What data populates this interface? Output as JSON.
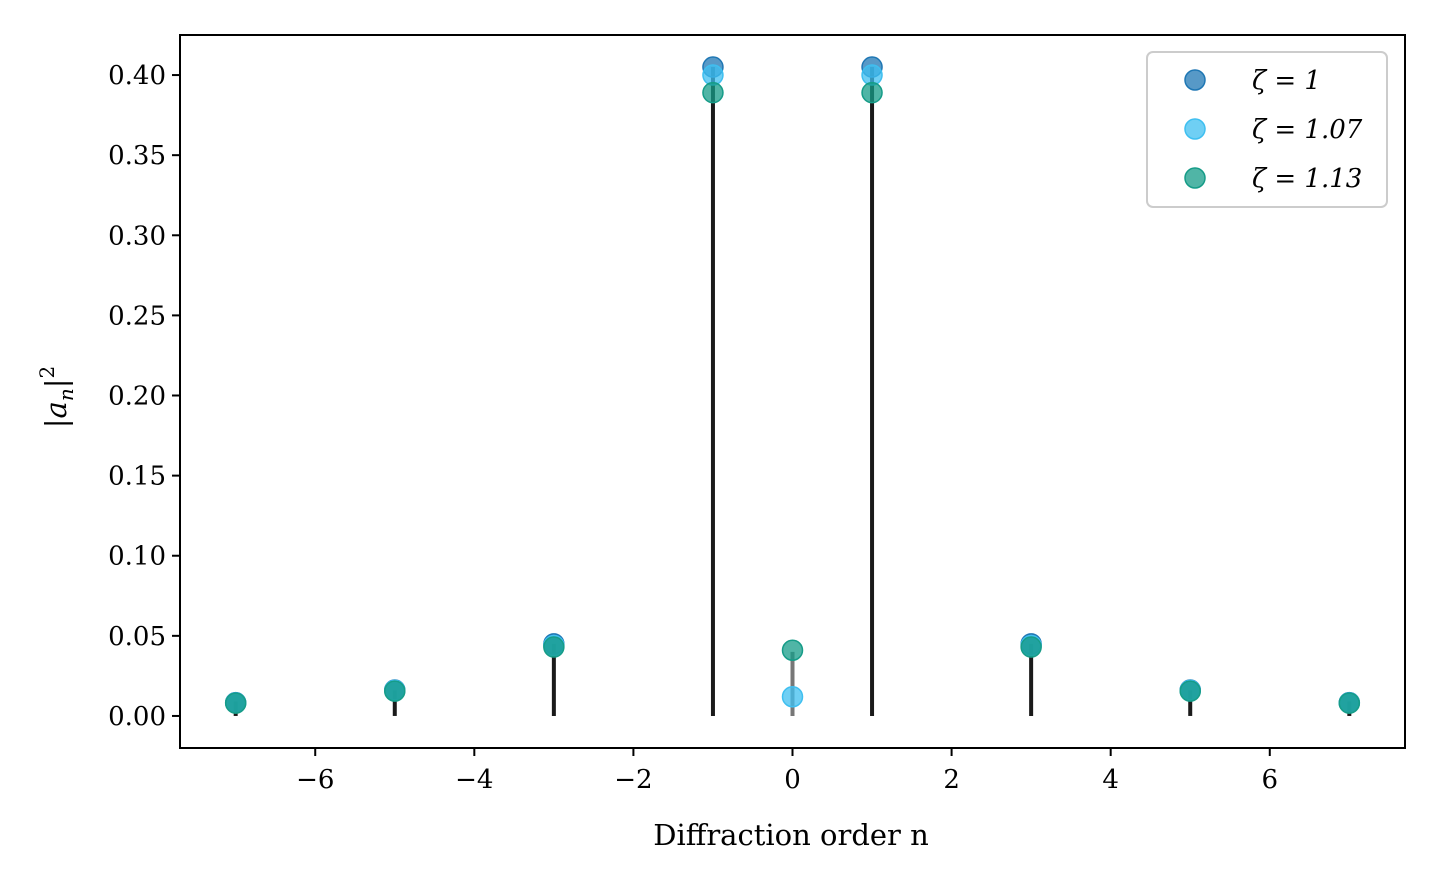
{
  "chart_data": {
    "type": "scatter",
    "title": "",
    "xlabel": "Diffraction order n",
    "ylabel": "|a_n|^2",
    "xlim": [
      -7.7,
      7.7
    ],
    "ylim": [
      -0.02,
      0.425
    ],
    "x_ticks": [
      -6,
      -4,
      -2,
      0,
      2,
      4,
      6
    ],
    "x_tick_labels": [
      "−6",
      "−4",
      "−2",
      "0",
      "2",
      "4",
      "6"
    ],
    "y_ticks": [
      0.0,
      0.05,
      0.1,
      0.15,
      0.2,
      0.25,
      0.3,
      0.35,
      0.4
    ],
    "y_tick_labels": [
      "0.00",
      "0.05",
      "0.10",
      "0.15",
      "0.20",
      "0.25",
      "0.30",
      "0.35",
      "0.40"
    ],
    "grid": false,
    "legend_position": "top-right",
    "stems": {
      "x": [
        -7,
        -5,
        -3,
        -1,
        0,
        1,
        3,
        5,
        7
      ],
      "y": [
        0.009,
        0.016,
        0.045,
        0.405,
        0.04,
        0.405,
        0.045,
        0.016,
        0.009
      ],
      "colors": [
        "#1a1a1a",
        "#1a1a1a",
        "#1a1a1a",
        "#1a1a1a",
        "#777777",
        "#1a1a1a",
        "#1a1a1a",
        "#1a1a1a",
        "#1a1a1a"
      ]
    },
    "series": [
      {
        "name": "ζ = 1",
        "color": "#1f77b4",
        "x": [
          -7,
          -5,
          -3,
          -1,
          1,
          3,
          5,
          7
        ],
        "y": [
          0.0083,
          0.0162,
          0.045,
          0.405,
          0.405,
          0.045,
          0.0162,
          0.0083
        ]
      },
      {
        "name": "ζ = 1.07",
        "color": "#3fbff0",
        "x": [
          -7,
          -5,
          -3,
          -1,
          0,
          1,
          3,
          5,
          7
        ],
        "y": [
          0.0082,
          0.016,
          0.044,
          0.4,
          0.012,
          0.4,
          0.044,
          0.016,
          0.0082
        ]
      },
      {
        "name": "ζ = 1.13",
        "color": "#169c88",
        "x": [
          -7,
          -5,
          -3,
          -1,
          0,
          1,
          3,
          5,
          7
        ],
        "y": [
          0.008,
          0.0155,
          0.043,
          0.389,
          0.041,
          0.389,
          0.043,
          0.0155,
          0.008
        ]
      }
    ]
  }
}
